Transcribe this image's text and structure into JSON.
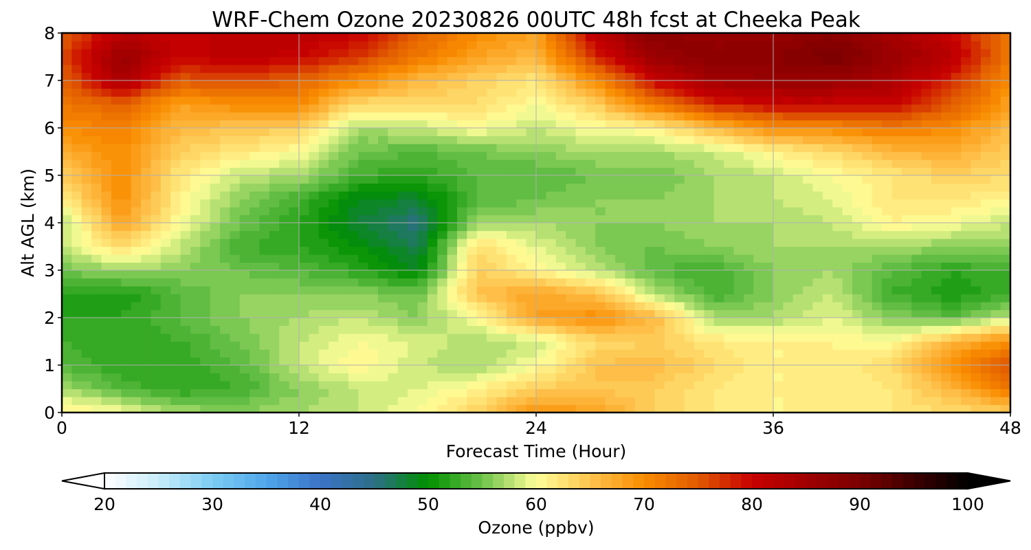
{
  "chart_data": {
    "type": "heatmap",
    "title": "WRF-Chem Ozone  20230826 00UTC 48h fcst at Cheeka Peak",
    "xlabel": "Forecast Time (Hour)",
    "ylabel": "Alt AGL (km)",
    "xlim": [
      0,
      48
    ],
    "ylim": [
      0,
      8
    ],
    "x_ticks": [
      0,
      12,
      24,
      36,
      48
    ],
    "y_ticks": [
      0,
      1,
      2,
      3,
      4,
      5,
      6,
      7,
      8
    ],
    "grid": true,
    "x": [
      0,
      3,
      6,
      9,
      12,
      15,
      18,
      21,
      24,
      27,
      30,
      33,
      36,
      39,
      42,
      45,
      48
    ],
    "y": [
      0,
      0.5,
      1,
      1.5,
      2,
      2.5,
      3,
      3.5,
      4,
      4.5,
      5,
      5.5,
      6,
      6.5,
      7,
      7.5,
      8
    ],
    "z": [
      [
        62,
        60,
        57,
        56,
        57,
        58,
        60,
        64,
        70,
        68,
        64,
        62,
        61,
        61,
        62,
        63,
        64
      ],
      [
        57,
        54,
        52,
        53,
        56,
        58,
        59,
        61,
        64,
        65,
        64,
        62,
        61,
        61,
        62,
        66,
        72
      ],
      [
        54,
        52,
        52,
        54,
        58,
        61,
        58,
        57,
        60,
        65,
        66,
        63,
        61,
        61,
        63,
        70,
        76
      ],
      [
        53,
        52,
        53,
        55,
        58,
        60,
        59,
        57,
        58,
        63,
        64,
        62,
        61,
        61,
        60,
        66,
        70
      ],
      [
        52,
        52,
        54,
        56,
        57,
        58,
        56,
        60,
        68,
        70,
        66,
        57,
        57,
        59,
        56,
        54,
        58
      ],
      [
        52,
        51,
        54,
        56,
        56,
        56,
        55,
        65,
        68,
        65,
        58,
        53,
        56,
        58,
        53,
        51,
        53
      ],
      [
        55,
        57,
        56,
        55,
        54,
        52,
        49,
        64,
        61,
        58,
        54,
        53,
        56,
        57,
        54,
        52,
        53
      ],
      [
        58,
        63,
        58,
        53,
        52,
        50,
        47,
        63,
        59,
        56,
        55,
        56,
        57,
        57,
        57,
        56,
        56
      ],
      [
        57,
        68,
        60,
        55,
        52,
        48,
        45,
        57,
        57,
        56,
        56,
        57,
        57,
        58,
        61,
        60,
        58
      ],
      [
        61,
        70,
        61,
        56,
        53,
        49,
        48,
        54,
        55,
        56,
        56,
        57,
        58,
        59,
        62,
        62,
        61
      ],
      [
        64,
        70,
        62,
        58,
        57,
        53,
        52,
        54,
        54,
        55,
        55,
        57,
        58,
        60,
        62,
        64,
        63
      ],
      [
        67,
        70,
        64,
        62,
        60,
        55,
        54,
        55,
        56,
        57,
        57,
        58,
        61,
        63,
        66,
        67,
        64
      ],
      [
        70,
        71,
        66,
        65,
        64,
        57,
        58,
        60,
        58,
        60,
        61,
        66,
        70,
        70,
        72,
        70,
        66
      ],
      [
        72,
        74,
        68,
        70,
        70,
        63,
        63,
        63,
        60,
        64,
        72,
        78,
        80,
        80,
        80,
        75,
        68
      ],
      [
        74,
        84,
        75,
        76,
        74,
        70,
        66,
        64,
        62,
        70,
        80,
        85,
        86,
        86,
        84,
        78,
        70
      ],
      [
        76,
        86,
        80,
        82,
        80,
        77,
        72,
        68,
        66,
        78,
        86,
        88,
        88,
        90,
        86,
        82,
        72
      ],
      [
        74,
        82,
        80,
        82,
        82,
        80,
        74,
        70,
        68,
        82,
        88,
        86,
        86,
        88,
        84,
        80,
        72
      ]
    ],
    "colorbar": {
      "label": "Ozone  (ppbv)",
      "min": 20,
      "max": 100,
      "extend": "both",
      "ticks": [
        20,
        30,
        40,
        50,
        60,
        70,
        80,
        90,
        100
      ],
      "stops": [
        {
          "v": 20,
          "c": "#ffffff"
        },
        {
          "v": 25,
          "c": "#c8ecfb"
        },
        {
          "v": 30,
          "c": "#7ccdf3"
        },
        {
          "v": 35,
          "c": "#4fa6ea"
        },
        {
          "v": 40,
          "c": "#3c73c8"
        },
        {
          "v": 45,
          "c": "#2c6f86"
        },
        {
          "v": 50,
          "c": "#009000"
        },
        {
          "v": 55,
          "c": "#6cc24a"
        },
        {
          "v": 60,
          "c": "#ffff99"
        },
        {
          "v": 65,
          "c": "#fec44f"
        },
        {
          "v": 70,
          "c": "#fa8c00"
        },
        {
          "v": 75,
          "c": "#e05a00"
        },
        {
          "v": 80,
          "c": "#c80000"
        },
        {
          "v": 90,
          "c": "#7a0000"
        },
        {
          "v": 100,
          "c": "#000000"
        }
      ]
    }
  }
}
